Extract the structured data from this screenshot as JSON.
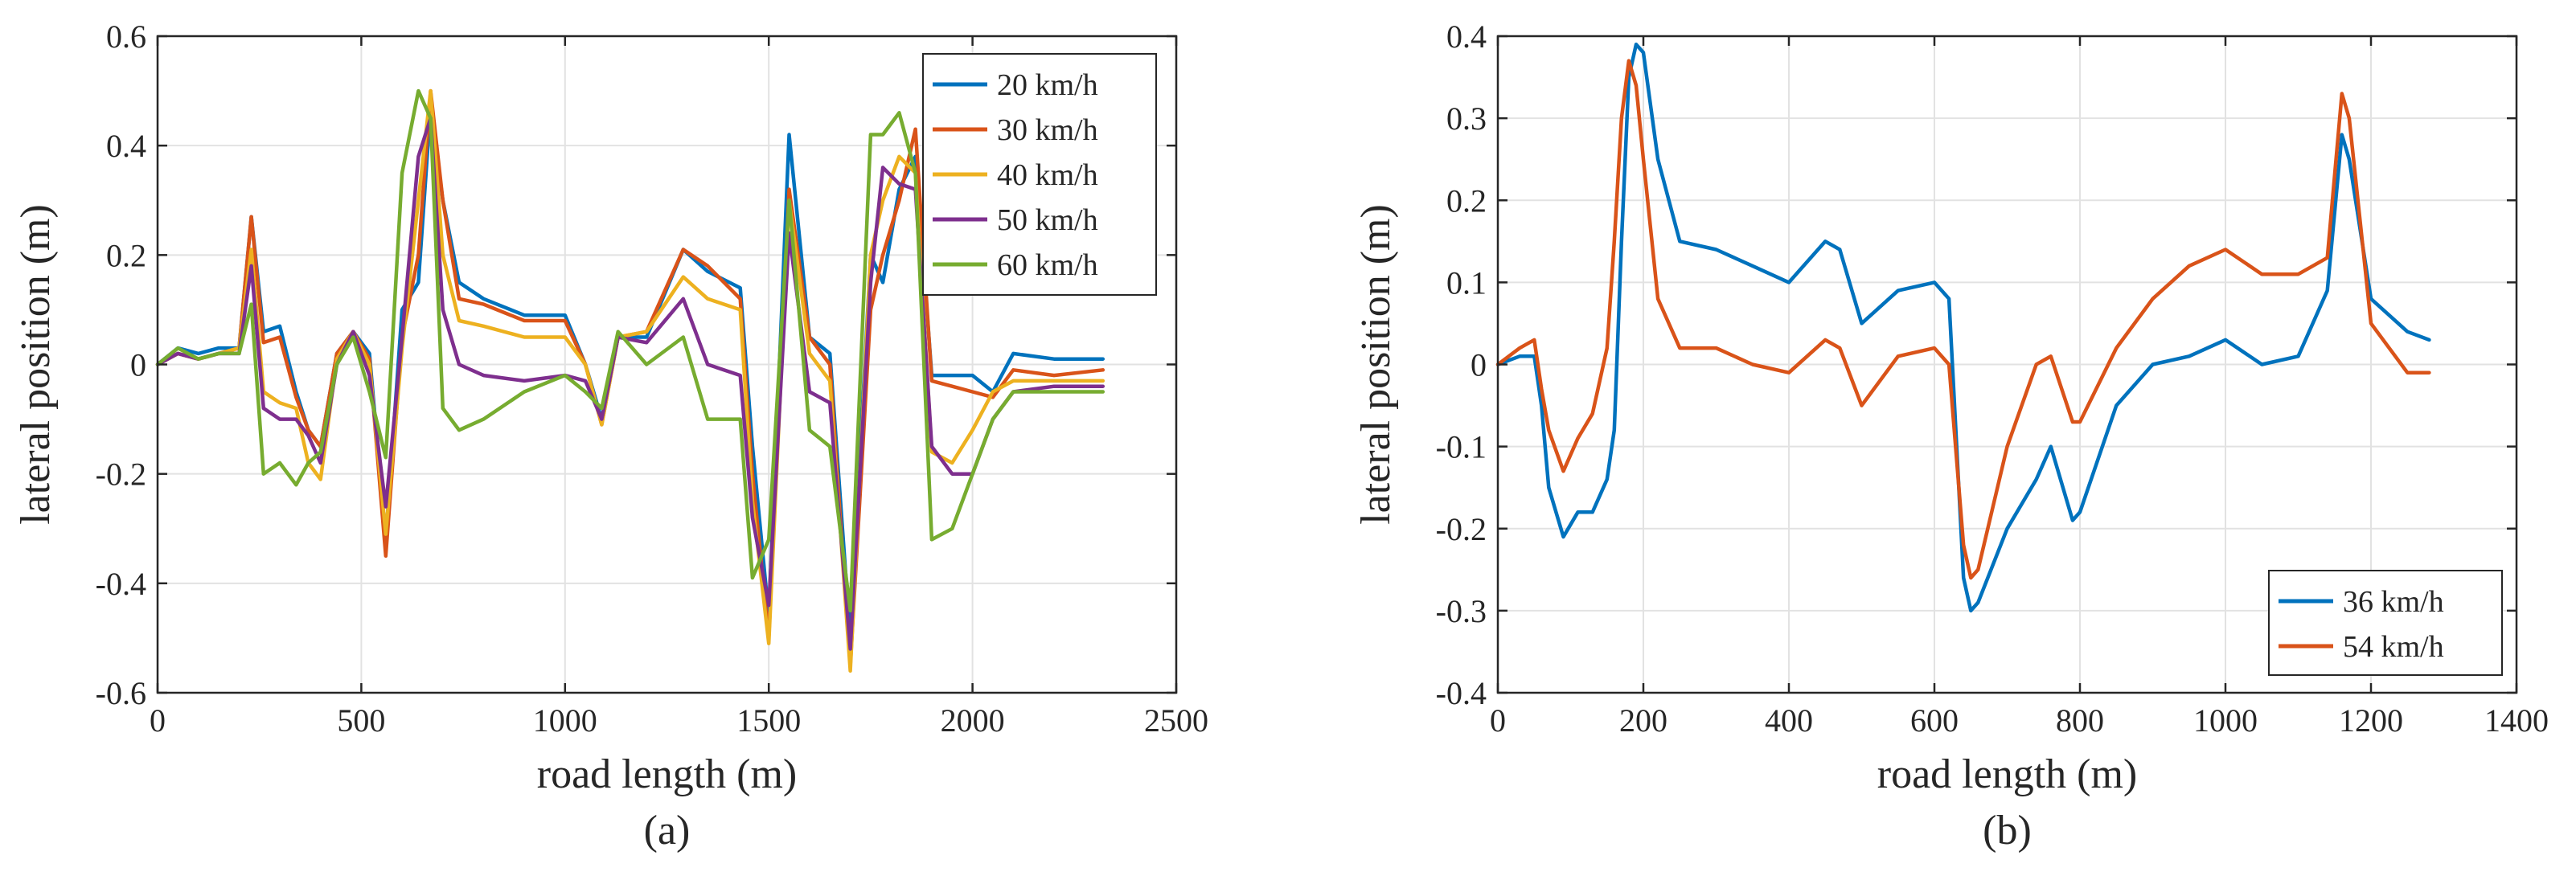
{
  "chart_data": [
    {
      "type": "line",
      "caption": "(a)",
      "xlabel": "road length (m)",
      "ylabel": "lateral position (m)",
      "xlim": [
        0,
        2500
      ],
      "ylim": [
        -0.6,
        0.6
      ],
      "xticks": [
        0,
        500,
        1000,
        1500,
        2000,
        2500
      ],
      "xtick_labels": [
        "0",
        "500",
        "1000",
        "1500",
        "2000",
        "2500"
      ],
      "yticks": [
        -0.6,
        -0.4,
        -0.2,
        0,
        0.2,
        0.4,
        0.6
      ],
      "ytick_labels": [
        "-0.6",
        "-0.4",
        "-0.2",
        "0",
        "0.2",
        "0.4",
        "0.6"
      ],
      "grid": true,
      "legend_position": "top-right",
      "series": [
        {
          "name": "20 km/h",
          "color": "#0072BD",
          "x": [
            0,
            50,
            100,
            150,
            200,
            230,
            260,
            300,
            340,
            370,
            400,
            440,
            480,
            520,
            560,
            600,
            640,
            670,
            700,
            740,
            800,
            900,
            1000,
            1050,
            1090,
            1130,
            1200,
            1290,
            1350,
            1430,
            1460,
            1500,
            1550,
            1600,
            1650,
            1700,
            1750,
            1780,
            1820,
            1860,
            1900,
            1950,
            2000,
            2050,
            2100,
            2200,
            2320
          ],
          "y": [
            0,
            0.03,
            0.02,
            0.03,
            0.03,
            0.27,
            0.06,
            0.07,
            -0.05,
            -0.12,
            -0.15,
            0.02,
            0.06,
            0.02,
            -0.32,
            0.1,
            0.15,
            0.47,
            0.3,
            0.15,
            0.12,
            0.09,
            0.09,
            0.0,
            -0.1,
            0.05,
            0.05,
            0.21,
            0.17,
            0.14,
            -0.15,
            -0.46,
            0.42,
            0.05,
            0.02,
            -0.5,
            0.2,
            0.15,
            0.32,
            0.38,
            -0.02,
            -0.02,
            -0.02,
            -0.05,
            0.02,
            0.01,
            0.01
          ]
        },
        {
          "name": "30 km/h",
          "color": "#D95319",
          "x": [
            0,
            50,
            100,
            150,
            200,
            230,
            260,
            300,
            340,
            370,
            400,
            440,
            480,
            520,
            560,
            600,
            640,
            670,
            700,
            740,
            800,
            900,
            1000,
            1050,
            1090,
            1130,
            1200,
            1290,
            1350,
            1430,
            1460,
            1500,
            1550,
            1600,
            1650,
            1700,
            1750,
            1780,
            1820,
            1860,
            1900,
            1950,
            2000,
            2050,
            2100,
            2200,
            2320
          ],
          "y": [
            0,
            0.02,
            0.01,
            0.02,
            0.03,
            0.27,
            0.04,
            0.05,
            -0.06,
            -0.12,
            -0.15,
            0.02,
            0.06,
            0.01,
            -0.35,
            0.05,
            0.2,
            0.5,
            0.3,
            0.12,
            0.11,
            0.08,
            0.08,
            0.0,
            -0.11,
            0.05,
            0.06,
            0.21,
            0.18,
            0.12,
            -0.2,
            -0.5,
            0.32,
            0.05,
            0.0,
            -0.55,
            0.1,
            0.2,
            0.3,
            0.43,
            -0.03,
            -0.04,
            -0.05,
            -0.06,
            -0.01,
            -0.02,
            -0.01
          ]
        },
        {
          "name": "40 km/h",
          "color": "#EDB120",
          "x": [
            0,
            50,
            100,
            150,
            200,
            230,
            260,
            300,
            340,
            370,
            400,
            440,
            480,
            520,
            560,
            600,
            640,
            670,
            700,
            740,
            800,
            900,
            1000,
            1050,
            1090,
            1130,
            1200,
            1290,
            1350,
            1430,
            1460,
            1500,
            1550,
            1600,
            1650,
            1700,
            1750,
            1780,
            1820,
            1860,
            1900,
            1950,
            2000,
            2050,
            2100,
            2200,
            2320
          ],
          "y": [
            0,
            0.02,
            0.01,
            0.02,
            0.03,
            0.21,
            -0.05,
            -0.07,
            -0.08,
            -0.18,
            -0.21,
            0.01,
            0.06,
            0.0,
            -0.31,
            0.03,
            0.3,
            0.5,
            0.2,
            0.08,
            0.07,
            0.05,
            0.05,
            0.0,
            -0.11,
            0.05,
            0.06,
            0.16,
            0.12,
            0.1,
            -0.25,
            -0.51,
            0.3,
            0.02,
            -0.03,
            -0.56,
            0.2,
            0.3,
            0.38,
            0.35,
            -0.16,
            -0.18,
            -0.12,
            -0.05,
            -0.03,
            -0.03,
            -0.03
          ]
        },
        {
          "name": "50 km/h",
          "color": "#7E2F8E",
          "x": [
            0,
            50,
            100,
            150,
            200,
            230,
            260,
            300,
            340,
            370,
            400,
            440,
            480,
            520,
            560,
            600,
            640,
            670,
            700,
            740,
            800,
            900,
            1000,
            1050,
            1090,
            1130,
            1200,
            1290,
            1350,
            1430,
            1460,
            1500,
            1550,
            1600,
            1650,
            1700,
            1750,
            1780,
            1820,
            1860,
            1900,
            1950,
            2000,
            2050,
            2100,
            2200,
            2320
          ],
          "y": [
            0,
            0.02,
            0.01,
            0.02,
            0.02,
            0.18,
            -0.08,
            -0.1,
            -0.1,
            -0.13,
            -0.18,
            0.0,
            0.06,
            -0.02,
            -0.26,
            0.05,
            0.38,
            0.45,
            0.1,
            0.0,
            -0.02,
            -0.03,
            -0.02,
            -0.03,
            -0.1,
            0.05,
            0.04,
            0.12,
            0.0,
            -0.02,
            -0.28,
            -0.44,
            0.24,
            -0.05,
            -0.07,
            -0.52,
            0.15,
            0.36,
            0.33,
            0.32,
            -0.15,
            -0.2,
            -0.2,
            -0.1,
            -0.05,
            -0.04,
            -0.04
          ]
        },
        {
          "name": "60 km/h",
          "color": "#77AC30",
          "x": [
            0,
            50,
            100,
            150,
            200,
            230,
            260,
            300,
            340,
            370,
            400,
            440,
            480,
            520,
            560,
            600,
            640,
            670,
            700,
            740,
            800,
            900,
            1000,
            1050,
            1090,
            1130,
            1200,
            1290,
            1350,
            1430,
            1460,
            1500,
            1550,
            1600,
            1650,
            1700,
            1750,
            1780,
            1820,
            1860,
            1900,
            1950,
            2000,
            2050,
            2100,
            2200,
            2320
          ],
          "y": [
            0,
            0.03,
            0.01,
            0.02,
            0.02,
            0.11,
            -0.2,
            -0.18,
            -0.22,
            -0.18,
            -0.16,
            0.0,
            0.05,
            -0.05,
            -0.17,
            0.35,
            0.5,
            0.45,
            -0.08,
            -0.12,
            -0.1,
            -0.05,
            -0.02,
            -0.05,
            -0.08,
            0.06,
            0.0,
            0.05,
            -0.1,
            -0.1,
            -0.39,
            -0.32,
            0.3,
            -0.12,
            -0.15,
            -0.45,
            0.42,
            0.42,
            0.46,
            0.35,
            -0.32,
            -0.3,
            -0.2,
            -0.1,
            -0.05,
            -0.05,
            -0.05
          ]
        }
      ]
    },
    {
      "type": "line",
      "caption": "(b)",
      "xlabel": "road length (m)",
      "ylabel": "lateral position (m)",
      "xlim": [
        0,
        1400
      ],
      "ylim": [
        -0.4,
        0.4
      ],
      "xticks": [
        0,
        200,
        400,
        600,
        800,
        1000,
        1200,
        1400
      ],
      "xtick_labels": [
        "0",
        "200",
        "400",
        "600",
        "800",
        "1000",
        "1200",
        "1400"
      ],
      "yticks": [
        -0.4,
        -0.3,
        -0.2,
        -0.1,
        0,
        0.1,
        0.2,
        0.3,
        0.4
      ],
      "ytick_labels": [
        "-0.4",
        "-0.3",
        "-0.2",
        "-0.1",
        "0",
        "0.1",
        "0.2",
        "0.3",
        "0.4"
      ],
      "grid": true,
      "legend_position": "bottom-right",
      "series": [
        {
          "name": "36 km/h",
          "color": "#0072BD",
          "x": [
            0,
            30,
            50,
            60,
            70,
            90,
            110,
            130,
            150,
            160,
            170,
            180,
            190,
            200,
            220,
            250,
            300,
            350,
            400,
            450,
            470,
            500,
            550,
            600,
            620,
            640,
            650,
            660,
            700,
            740,
            760,
            790,
            800,
            850,
            900,
            950,
            1000,
            1050,
            1100,
            1140,
            1160,
            1170,
            1200,
            1250,
            1280
          ],
          "y": [
            0,
            0.01,
            0.01,
            -0.05,
            -0.15,
            -0.21,
            -0.18,
            -0.18,
            -0.14,
            -0.08,
            0.15,
            0.35,
            0.39,
            0.38,
            0.25,
            0.15,
            0.14,
            0.12,
            0.1,
            0.15,
            0.14,
            0.05,
            0.09,
            0.1,
            0.08,
            -0.26,
            -0.3,
            -0.29,
            -0.2,
            -0.14,
            -0.1,
            -0.19,
            -0.18,
            -0.05,
            0.0,
            0.01,
            0.03,
            0.0,
            0.01,
            0.09,
            0.28,
            0.25,
            0.08,
            0.04,
            0.03
          ]
        },
        {
          "name": "54 km/h",
          "color": "#D95319",
          "x": [
            0,
            30,
            50,
            60,
            70,
            90,
            110,
            130,
            150,
            160,
            170,
            180,
            190,
            200,
            220,
            250,
            300,
            350,
            400,
            450,
            470,
            500,
            550,
            600,
            620,
            640,
            650,
            660,
            700,
            740,
            760,
            790,
            800,
            850,
            900,
            950,
            1000,
            1050,
            1100,
            1140,
            1160,
            1170,
            1200,
            1250,
            1280
          ],
          "y": [
            0,
            0.02,
            0.03,
            -0.03,
            -0.08,
            -0.13,
            -0.09,
            -0.06,
            0.02,
            0.15,
            0.3,
            0.37,
            0.34,
            0.25,
            0.08,
            0.02,
            0.02,
            0.0,
            -0.01,
            0.03,
            0.02,
            -0.05,
            0.01,
            0.02,
            0.0,
            -0.22,
            -0.26,
            -0.25,
            -0.1,
            0.0,
            0.01,
            -0.07,
            -0.07,
            0.02,
            0.08,
            0.12,
            0.14,
            0.11,
            0.11,
            0.13,
            0.33,
            0.3,
            0.05,
            -0.01,
            -0.01
          ]
        }
      ]
    }
  ]
}
